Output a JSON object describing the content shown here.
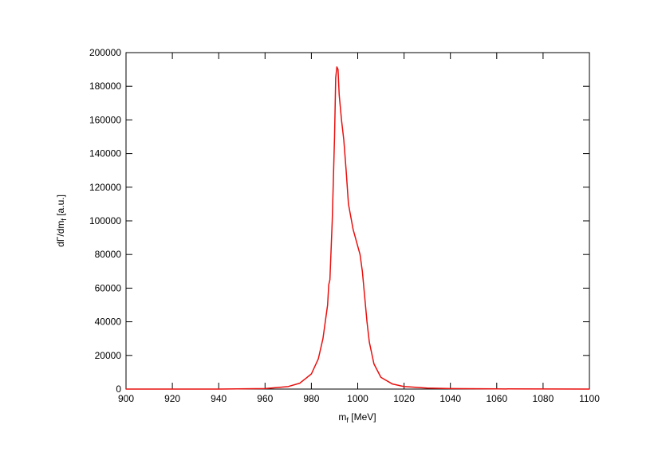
{
  "chart_data": {
    "type": "line",
    "xlabel": [
      "m",
      "f",
      " [MeV]"
    ],
    "ylabel": [
      "dΓ/dm",
      "f",
      " [a.u.]"
    ],
    "x": [
      900,
      940,
      960,
      970,
      975,
      980,
      983,
      985,
      987,
      987.5,
      988,
      989,
      990,
      990.5,
      991,
      991.5,
      992,
      993,
      994,
      995,
      996,
      998,
      1000,
      1001,
      1002,
      1003,
      1004,
      1005,
      1007,
      1010,
      1015,
      1020,
      1030,
      1040,
      1060,
      1100
    ],
    "series": [
      {
        "color": "#e8100e",
        "values": [
          0,
          0,
          300,
          1500,
          3500,
          9000,
          18000,
          30000,
          50000,
          62000,
          65000,
          100000,
          150000,
          185000,
          191500,
          190000,
          175000,
          160000,
          148000,
          130000,
          110000,
          95000,
          85000,
          80000,
          70000,
          55000,
          40000,
          28000,
          15000,
          7000,
          3000,
          1500,
          600,
          300,
          100,
          0
        ]
      }
    ],
    "xlim": [
      900,
      1100
    ],
    "xticks": [
      900,
      920,
      940,
      960,
      980,
      1000,
      1020,
      1040,
      1060,
      1080,
      1100
    ],
    "ylim": [
      0,
      200000
    ],
    "yticks": [
      0,
      20000,
      40000,
      60000,
      80000,
      100000,
      120000,
      140000,
      160000,
      180000,
      200000
    ]
  }
}
